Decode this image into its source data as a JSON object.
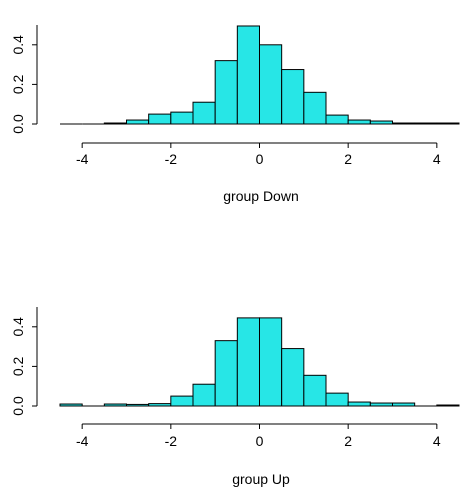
{
  "colors": {
    "bar_fill": "#27E6E6",
    "stroke": "#000000",
    "background": "#FFFFFF"
  },
  "chart_data": [
    {
      "type": "bar",
      "xlabel": "group Down",
      "xlim": [
        -4.5,
        4.5
      ],
      "ylim": [
        0,
        0.5
      ],
      "xticks": [
        -4,
        -2,
        0,
        2,
        4
      ],
      "yticks": [
        0.0,
        0.2,
        0.4
      ],
      "xtick_labels": [
        "-4",
        "-2",
        "0",
        "2",
        "4"
      ],
      "ytick_labels": [
        "0.0",
        "0.2",
        "0.4"
      ],
      "bin_width": 0.5,
      "bins_start": [
        -4.5,
        -4.0,
        -3.5,
        -3.0,
        -2.5,
        -2.0,
        -1.5,
        -1.0,
        -0.5,
        0.0,
        0.5,
        1.0,
        1.5,
        2.0,
        2.5,
        3.0,
        3.5,
        4.0
      ],
      "values": [
        0.0,
        0.0,
        0.005,
        0.02,
        0.05,
        0.06,
        0.11,
        0.32,
        0.495,
        0.4,
        0.275,
        0.16,
        0.045,
        0.02,
        0.015,
        0.005,
        0.005,
        0.005
      ],
      "grid": false,
      "legend": "none"
    },
    {
      "type": "bar",
      "xlabel": "group Up",
      "xlim": [
        -4.5,
        4.5
      ],
      "ylim": [
        0,
        0.5
      ],
      "xticks": [
        -4,
        -2,
        0,
        2,
        4
      ],
      "yticks": [
        0.0,
        0.2,
        0.4
      ],
      "xtick_labels": [
        "-4",
        "-2",
        "0",
        "2",
        "4"
      ],
      "ytick_labels": [
        "0.0",
        "0.2",
        "0.4"
      ],
      "bin_width": 0.5,
      "bins_start": [
        -4.5,
        -4.0,
        -3.5,
        -3.0,
        -2.5,
        -2.0,
        -1.5,
        -1.0,
        -0.5,
        0.0,
        0.5,
        1.0,
        1.5,
        2.0,
        2.5,
        3.0,
        3.5,
        4.0
      ],
      "values": [
        0.01,
        0.0,
        0.01,
        0.008,
        0.012,
        0.05,
        0.11,
        0.33,
        0.445,
        0.445,
        0.29,
        0.155,
        0.065,
        0.02,
        0.015,
        0.015,
        0.0,
        0.005
      ],
      "grid": false,
      "legend": "none"
    }
  ]
}
